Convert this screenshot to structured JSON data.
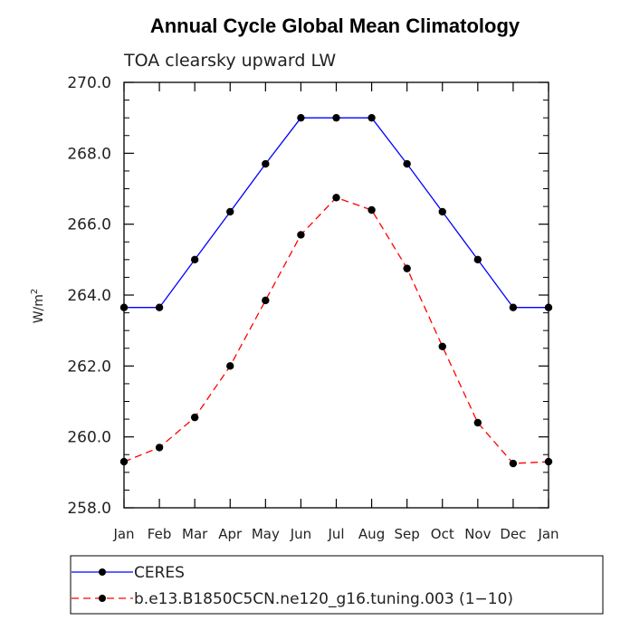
{
  "chart_data": {
    "type": "line",
    "title": "Annual Cycle Global Mean Climatology",
    "subtitle": "TOA clearsky upward LW",
    "ylabel": "W/m",
    "ylabel_superscript": "2",
    "ylim": [
      258.0,
      270.0
    ],
    "yticks": [
      "258.0",
      "260.0",
      "262.0",
      "264.0",
      "266.0",
      "268.0",
      "270.0"
    ],
    "ytick_values": [
      258,
      260,
      262,
      264,
      266,
      268,
      270
    ],
    "categories": [
      "Jan",
      "Feb",
      "Mar",
      "Apr",
      "May",
      "Jun",
      "Jul",
      "Aug",
      "Sep",
      "Oct",
      "Nov",
      "Dec",
      "Jan"
    ],
    "series": [
      {
        "name": "CERES",
        "color": "#0000ff",
        "dash": "solid",
        "values": [
          263.65,
          263.65,
          265.0,
          266.35,
          267.7,
          269.0,
          269.0,
          269.0,
          267.7,
          266.35,
          265.0,
          263.65,
          263.65
        ]
      },
      {
        "name": "b.e13.B1850C5CN.ne120_g16.tuning.003 (1−10)",
        "color": "#ff0000",
        "dash": "dashed",
        "values": [
          259.3,
          259.7,
          260.55,
          262.0,
          263.85,
          265.7,
          266.75,
          266.4,
          264.75,
          262.55,
          260.4,
          259.25,
          259.3
        ]
      }
    ],
    "grid": false,
    "legend_position": "bottom"
  }
}
